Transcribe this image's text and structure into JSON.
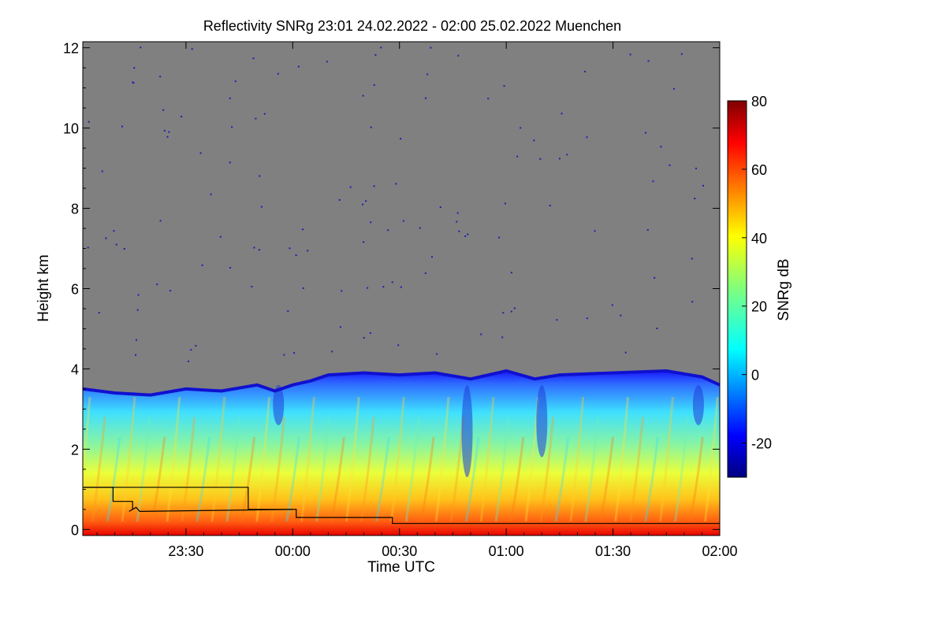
{
  "chart_data": {
    "type": "heatmap",
    "title": "Reflectivity SNRg   23:01 24.02.2022 - 02:00 25.02.2022 Muenchen",
    "xlabel": "Time UTC",
    "ylabel": "Height km",
    "xlim_minutes_utc": [
      1381,
      1560
    ],
    "ylim": [
      -0.15,
      12.15
    ],
    "x_ticks": [
      {
        "label": "23:30",
        "minutes": 1410
      },
      {
        "label": "00:00",
        "minutes": 1440
      },
      {
        "label": "00:30",
        "minutes": 1470
      },
      {
        "label": "01:00",
        "minutes": 1500
      },
      {
        "label": "01:30",
        "minutes": 1530
      },
      {
        "label": "02:00",
        "minutes": 1560
      }
    ],
    "y_ticks": [
      0,
      2,
      4,
      6,
      8,
      10,
      12
    ],
    "colorbar": {
      "label": "SNRg dB",
      "range": [
        -30,
        80
      ],
      "ticks": [
        -20,
        0,
        20,
        40,
        60,
        80
      ],
      "colormap": "jet"
    },
    "no_signal_color": "#808080",
    "speckle_color": "#2020b0",
    "cloud_top_km": [
      [
        1381,
        3.5
      ],
      [
        1390,
        3.4
      ],
      [
        1400,
        3.35
      ],
      [
        1410,
        3.5
      ],
      [
        1420,
        3.45
      ],
      [
        1430,
        3.6
      ],
      [
        1435,
        3.45
      ],
      [
        1440,
        3.6
      ],
      [
        1445,
        3.7
      ],
      [
        1450,
        3.85
      ],
      [
        1460,
        3.9
      ],
      [
        1470,
        3.85
      ],
      [
        1480,
        3.9
      ],
      [
        1490,
        3.75
      ],
      [
        1500,
        3.95
      ],
      [
        1508,
        3.75
      ],
      [
        1515,
        3.85
      ],
      [
        1530,
        3.9
      ],
      [
        1545,
        3.95
      ],
      [
        1555,
        3.8
      ],
      [
        1560,
        3.6
      ]
    ],
    "mixing_layer_lines": [
      {
        "points": [
          [
            1381,
            1.05
          ],
          [
            1427.5,
            1.05
          ],
          [
            1427.5,
            0.5
          ],
          [
            1441,
            0.5
          ],
          [
            1441,
            0.3
          ],
          [
            1468,
            0.3
          ],
          [
            1468,
            0.15
          ],
          [
            1560,
            0.15
          ]
        ]
      },
      {
        "points": [
          [
            1381,
            1.05
          ],
          [
            1389.5,
            1.05
          ],
          [
            1389.5,
            0.7
          ],
          [
            1395,
            0.7
          ],
          [
            1395,
            0.5
          ],
          [
            1394,
            0.45
          ],
          [
            1396,
            0.55
          ],
          [
            1397,
            0.45
          ],
          [
            1440,
            0.5
          ]
        ]
      }
    ]
  }
}
